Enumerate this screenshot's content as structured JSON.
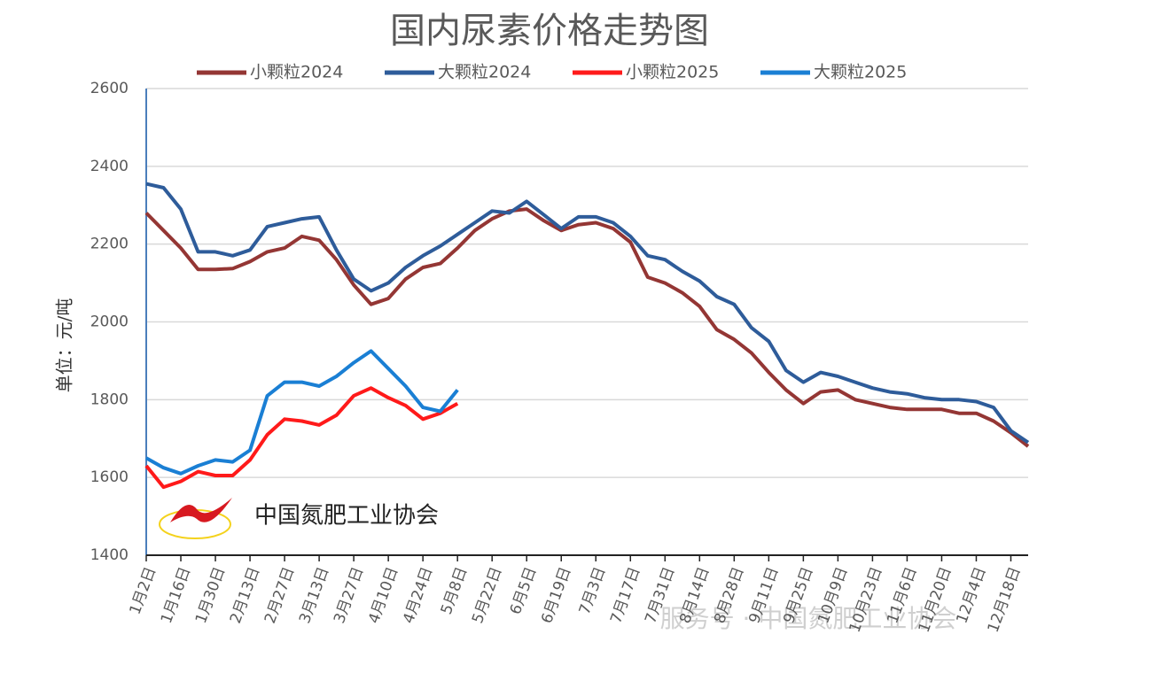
{
  "chart_data": {
    "type": "line",
    "title": "国内尿素价格走势图",
    "y_label": "单位：元/吨",
    "logo_text": "中国氮肥工业协会",
    "watermark": "服务号 · 中国氮肥工业协会",
    "categories": [
      "1月2日",
      null,
      "1月16日",
      null,
      "1月30日",
      null,
      "2月13日",
      null,
      "2月27日",
      null,
      "3月13日",
      null,
      "3月27日",
      null,
      "4月10日",
      null,
      "4月24日",
      null,
      "5月8日",
      null,
      "5月22日",
      null,
      "6月5日",
      null,
      "6月19日",
      null,
      "7月3日",
      null,
      "7月17日",
      null,
      "7月31日",
      null,
      "8月14日",
      null,
      "8月28日",
      null,
      "9月11日",
      null,
      "9月25日",
      null,
      "10月9日",
      null,
      "10月23日",
      null,
      "11月6日",
      null,
      "11月20日",
      null,
      "12月4日",
      null,
      "12月18日",
      null
    ],
    "series": [
      {
        "name": "小颗粒2024",
        "color": "#943634",
        "values": [
          2280,
          2235,
          2190,
          2135,
          2135,
          2137,
          2155,
          2180,
          2190,
          2220,
          2210,
          2160,
          2095,
          2045,
          2060,
          2110,
          2140,
          2150,
          2190,
          2235,
          2265,
          2285,
          2290,
          2260,
          2235,
          2250,
          2255,
          2240,
          2205,
          2115,
          2100,
          2075,
          2040,
          1980,
          1955,
          1920,
          1870,
          1825,
          1790,
          1820,
          1825,
          1800,
          1790,
          1780,
          1775,
          1775,
          1775,
          1765,
          1765,
          1745,
          1715,
          1680
        ]
      },
      {
        "name": "大颗粒2024",
        "color": "#2e5c9a",
        "values": [
          2355,
          2345,
          2290,
          2180,
          2180,
          2170,
          2185,
          2245,
          2255,
          2265,
          2270,
          2185,
          2110,
          2080,
          2100,
          2140,
          2170,
          2195,
          2225,
          2255,
          2285,
          2280,
          2310,
          2275,
          2240,
          2270,
          2270,
          2255,
          2220,
          2170,
          2160,
          2130,
          2105,
          2065,
          2045,
          1985,
          1950,
          1875,
          1845,
          1870,
          1860,
          1845,
          1830,
          1820,
          1815,
          1805,
          1800,
          1800,
          1795,
          1780,
          1720,
          1690
        ]
      },
      {
        "name": "小颗粒2025",
        "color": "#ff1a1a",
        "values": [
          1630,
          1575,
          1590,
          1615,
          1605,
          1605,
          1645,
          1710,
          1750,
          1745,
          1735,
          1760,
          1810,
          1830,
          1805,
          1785,
          1750,
          1765,
          1790,
          null,
          null,
          null,
          null,
          null,
          null,
          null,
          null,
          null,
          null,
          null,
          null,
          null,
          null,
          null,
          null,
          null,
          null,
          null,
          null,
          null,
          null,
          null,
          null,
          null,
          null,
          null,
          null,
          null,
          null,
          null,
          null,
          null
        ]
      },
      {
        "name": "大颗粒2025",
        "color": "#1a7fd4",
        "values": [
          1650,
          1625,
          1610,
          1630,
          1645,
          1640,
          1670,
          1810,
          1845,
          1845,
          1835,
          1860,
          1895,
          1925,
          1880,
          1835,
          1780,
          1770,
          1825,
          null,
          null,
          null,
          null,
          null,
          null,
          null,
          null,
          null,
          null,
          null,
          null,
          null,
          null,
          null,
          null,
          null,
          null,
          null,
          null,
          null,
          null,
          null,
          null,
          null,
          null,
          null,
          null,
          null,
          null,
          null,
          null,
          null
        ]
      }
    ],
    "ylim": [
      1400,
      2600
    ],
    "yticks": [
      1400,
      1600,
      1800,
      2000,
      2200,
      2400,
      2600
    ],
    "grid": true
  }
}
